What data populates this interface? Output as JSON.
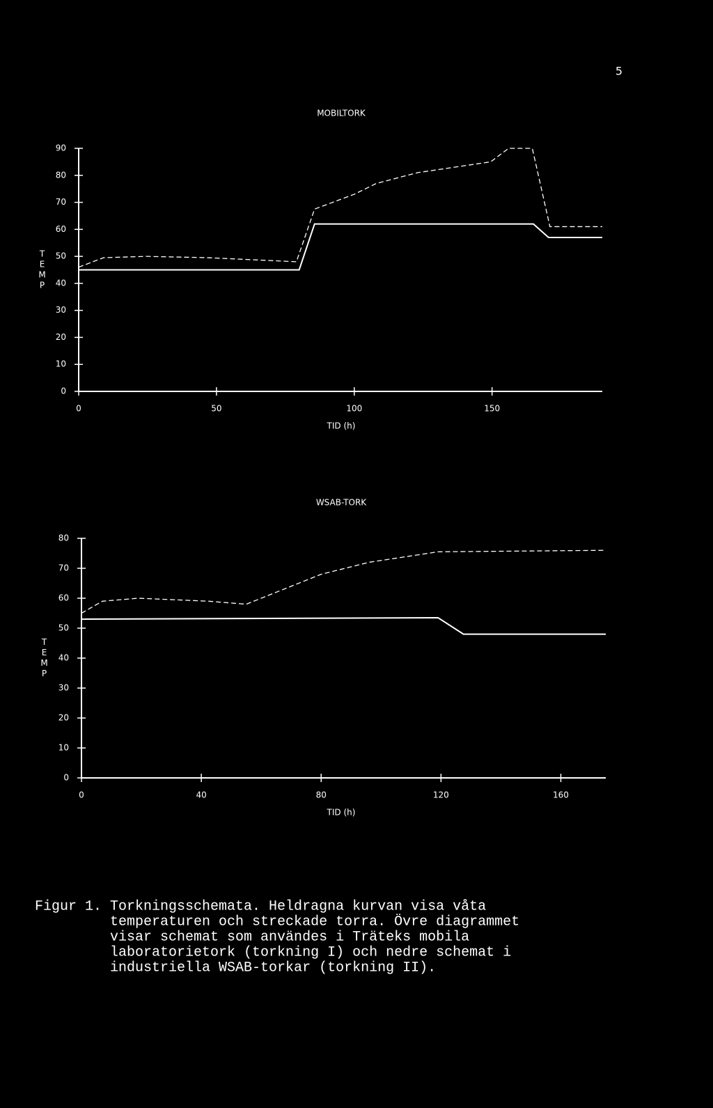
{
  "page_number": "5",
  "chart_data": [
    {
      "type": "line",
      "title": "MOBILTORK",
      "x_label": "TID (h)",
      "y_label": "TEMP",
      "xlim": [
        0,
        190
      ],
      "xticks": [
        0,
        50,
        100,
        150
      ],
      "ylim": [
        0,
        90
      ],
      "yticks": [
        0,
        10,
        20,
        30,
        40,
        50,
        60,
        70,
        80,
        90
      ],
      "series": [
        {
          "color": "#ffffff",
          "style": "solid",
          "x": [
            0,
            80,
            85.6,
            165,
            170.5,
            190
          ],
          "values": [
            45,
            45,
            62,
            62,
            57,
            57
          ]
        },
        {
          "color": "#ffffff",
          "style": "dashed",
          "x": [
            0,
            9,
            24.5,
            47,
            79,
            85.6,
            100,
            108,
            123,
            149.5,
            156,
            164.6,
            171,
            190
          ],
          "values": [
            46,
            49.5,
            50,
            49.5,
            48,
            67.5,
            73,
            77,
            81,
            85,
            90,
            90,
            61,
            61
          ]
        }
      ]
    },
    {
      "type": "line",
      "title": "WSAB-TORK",
      "x_label": "TID (h)",
      "y_label": "TEMP",
      "xlim": [
        0,
        175
      ],
      "xticks": [
        0,
        40,
        80,
        120,
        160
      ],
      "ylim": [
        0,
        80
      ],
      "yticks": [
        0,
        10,
        20,
        30,
        40,
        50,
        60,
        70,
        80
      ],
      "series": [
        {
          "color": "#ffffff",
          "style": "solid",
          "x": [
            0,
            119,
            127.5,
            175
          ],
          "values": [
            53,
            53.5,
            48,
            48
          ]
        },
        {
          "color": "#ffffff",
          "style": "dashed",
          "x": [
            0,
            7,
            19,
            42.5,
            55,
            80,
            96,
            119,
            175
          ],
          "values": [
            55,
            59,
            60,
            59,
            58,
            68,
            72,
            75.5,
            76
          ]
        }
      ]
    }
  ],
  "caption": [
    "Figur 1. Torkningsschemata. Heldragna kurvan visa våta",
    "         temperaturen och streckade torra. Övre diagrammet",
    "         visar schemat som användes i Träteks mobila",
    "         laboratorietork (torkning I) och nedre schemat i",
    "         industriella WSAB-torkar (torkning II)."
  ]
}
